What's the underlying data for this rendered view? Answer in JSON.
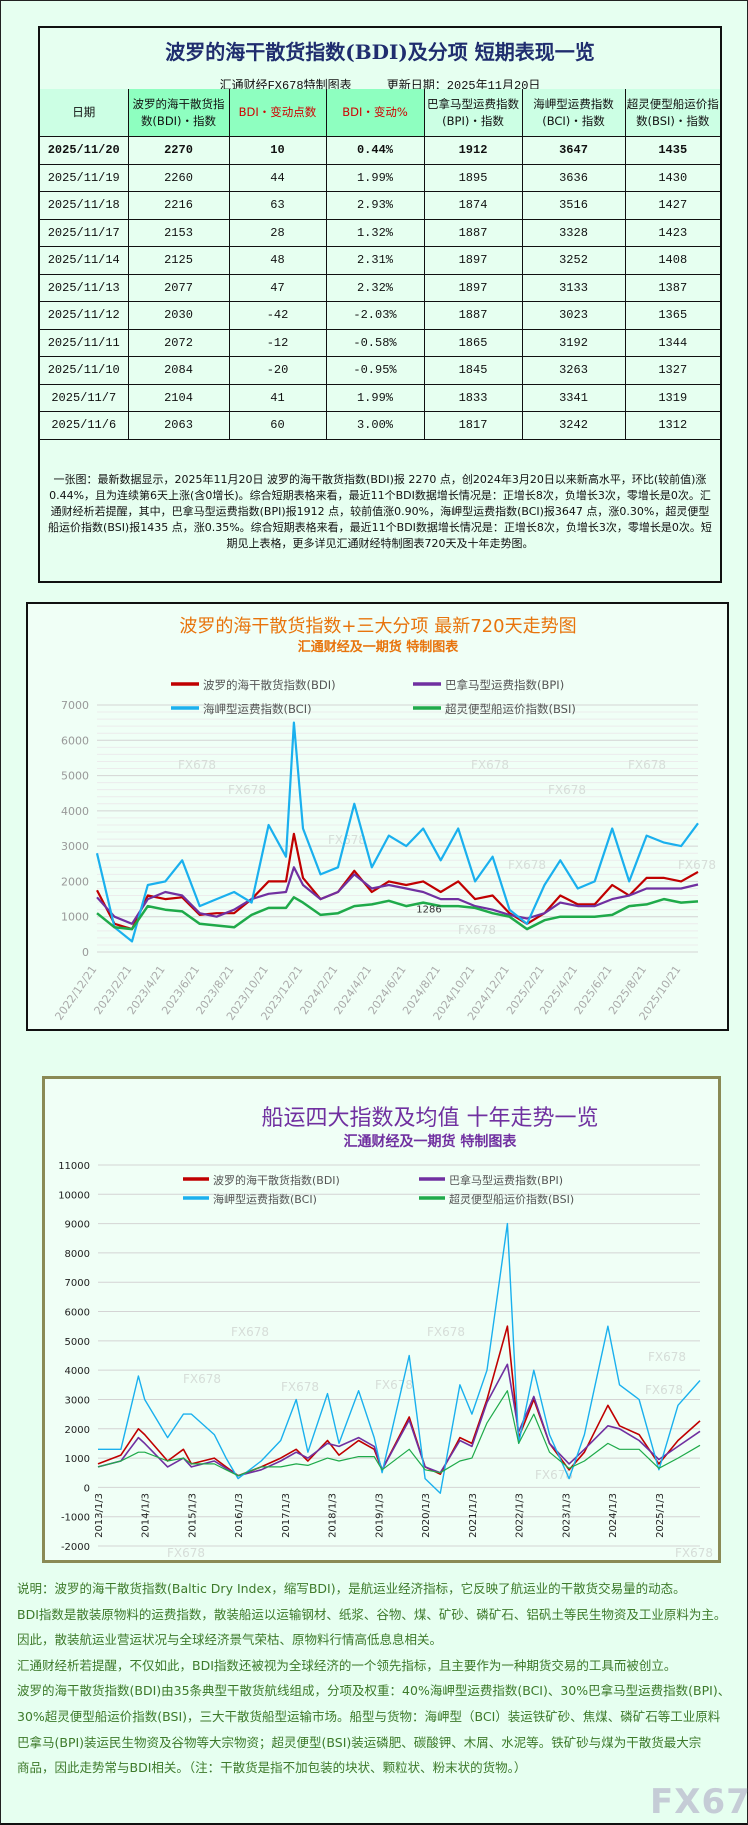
{
  "table_panel": {
    "title": "波罗的海干散货指数(BDI)及分项 短期表现一览",
    "source": "汇通财经FX678特制图表",
    "update_label": "更新日期：2025年11月20日",
    "headers": [
      "日期",
      "波罗的海干散货指数(BDI)・指数",
      "BDI・变动点数",
      "BDI・变动%",
      "巴拿马型运费指数(BPI)・指数",
      "海岬型运费指数(BCI)・指数",
      "超灵便型船运价指数(BSI)・指数"
    ],
    "rows": [
      [
        "2025/11/20",
        "2270",
        "10",
        "0.44%",
        "1912",
        "3647",
        "1435"
      ],
      [
        "2025/11/19",
        "2260",
        "44",
        "1.99%",
        "1895",
        "3636",
        "1430"
      ],
      [
        "2025/11/18",
        "2216",
        "63",
        "2.93%",
        "1874",
        "3516",
        "1427"
      ],
      [
        "2025/11/17",
        "2153",
        "28",
        "1.32%",
        "1887",
        "3328",
        "1423"
      ],
      [
        "2025/11/14",
        "2125",
        "48",
        "2.31%",
        "1897",
        "3252",
        "1408"
      ],
      [
        "2025/11/13",
        "2077",
        "47",
        "2.32%",
        "1897",
        "3133",
        "1387"
      ],
      [
        "2025/11/12",
        "2030",
        "-42",
        "-2.03%",
        "1887",
        "3023",
        "1365"
      ],
      [
        "2025/11/11",
        "2072",
        "-12",
        "-0.58%",
        "1865",
        "3192",
        "1344"
      ],
      [
        "2025/11/10",
        "2084",
        "-20",
        "-0.95%",
        "1845",
        "3263",
        "1327"
      ],
      [
        "2025/11/7",
        "2104",
        "41",
        "1.99%",
        "1833",
        "3341",
        "1319"
      ],
      [
        "2025/11/6",
        "2063",
        "60",
        "3.00%",
        "1817",
        "3242",
        "1312"
      ]
    ],
    "summary": "一张图：最新数据显示，2025年11月20日 波罗的海干散货指数(BDI)报 2270 点，创2024年3月20日以来新高水平，环比(较前值)涨0.44%，且为连续第6天上涨(含0增长)。综合短期表格来看，最近11个BDI数据增长情况是：正增长8次，负增长3次，零增长是0次。汇通财经析若提醒，其中，巴拿马型运费指数(BPI)报1912 点，较前值涨0.90%，海岬型运费指数(BCI)报3647 点，涨0.30%，超灵便型船运价指数(BSI)报1435 点，涨0.35%。综合短期表格来看，最近11个BDI数据增长情况是：正增长8次，负增长3次，零增长是0次。短期见上表格，更多详见汇通财经特制图表720天及十年走势图。"
  },
  "colors": {
    "bdi": "#c00000",
    "bpi": "#7030a0",
    "bci": "#1ab0ee",
    "bsi": "#1faa4a",
    "title1": "#e8740c",
    "title2": "#7030a0",
    "red_header": "#d00000"
  },
  "watermark": "FX678",
  "chart_data": [
    {
      "type": "line",
      "title": "波罗的海干散货指数+三大分项  最新720天走势图",
      "subtitle": "汇通财经及一期货  特制图表",
      "ylim": [
        0,
        7000
      ],
      "y_ticks": [
        "0",
        "1000",
        "2000",
        "3000",
        "4000",
        "5000",
        "6000",
        "7000"
      ],
      "x_ticks": [
        "2022/12/21",
        "2023/2/21",
        "2023/4/21",
        "2023/6/21",
        "2023/8/21",
        "2023/10/21",
        "2023/12/21",
        "2024/2/21",
        "2024/4/21",
        "2024/6/21",
        "2024/8/21",
        "2024/10/21",
        "2024/12/21",
        "2025/2/21",
        "2025/4/21",
        "2025/6/21",
        "2025/8/21",
        "2025/10/21"
      ],
      "grid": true,
      "legend": "top",
      "annotation": "1286",
      "x": [
        "2022/12/21",
        "2023/1/21",
        "2023/2/21",
        "2023/3/21",
        "2023/4/21",
        "2023/5/21",
        "2023/6/21",
        "2023/7/21",
        "2023/8/21",
        "2023/9/21",
        "2023/10/21",
        "2023/11/21",
        "2023/12/5",
        "2023/12/21",
        "2024/1/21",
        "2024/2/21",
        "2024/3/21",
        "2024/4/21",
        "2024/5/21",
        "2024/6/21",
        "2024/7/21",
        "2024/8/21",
        "2024/9/21",
        "2024/10/21",
        "2024/11/21",
        "2024/12/21",
        "2025/1/21",
        "2025/2/21",
        "2025/3/21",
        "2025/4/21",
        "2025/5/21",
        "2025/6/21",
        "2025/7/21",
        "2025/8/21",
        "2025/9/21",
        "2025/10/21",
        "2025/11/20"
      ],
      "series": [
        {
          "name": "波罗的海干散货指数(BDI)",
          "color": "#c00000",
          "values": [
            1750,
            800,
            650,
            1600,
            1500,
            1550,
            1050,
            1100,
            1100,
            1500,
            2000,
            2000,
            3350,
            2100,
            1500,
            1700,
            2300,
            1700,
            2000,
            1900,
            2000,
            1700,
            2000,
            1500,
            1600,
            1100,
            800,
            1100,
            1600,
            1350,
            1350,
            1900,
            1600,
            2100,
            2100,
            2000,
            2270
          ]
        },
        {
          "name": "巴拿马型运费指数(BPI)",
          "color": "#7030a0",
          "values": [
            1550,
            1000,
            800,
            1500,
            1700,
            1600,
            1100,
            1000,
            1200,
            1500,
            1650,
            1700,
            2400,
            1900,
            1500,
            1700,
            2200,
            1800,
            1900,
            1800,
            1700,
            1500,
            1500,
            1300,
            1200,
            1050,
            950,
            1100,
            1400,
            1300,
            1300,
            1500,
            1600,
            1800,
            1800,
            1800,
            1912
          ]
        },
        {
          "name": "海岬型运费指数(BCI)",
          "color": "#1ab0ee",
          "values": [
            2800,
            700,
            300,
            1900,
            2000,
            2600,
            1300,
            1500,
            1700,
            1400,
            3600,
            2700,
            6500,
            3500,
            2200,
            2400,
            4200,
            2400,
            3300,
            3000,
            3500,
            2600,
            3500,
            2000,
            2700,
            1200,
            800,
            1900,
            2600,
            1800,
            2000,
            3500,
            2000,
            3300,
            3100,
            3000,
            3647
          ]
        },
        {
          "name": "超灵便型船运价指数(BSI)",
          "color": "#1faa4a",
          "values": [
            1100,
            700,
            650,
            1300,
            1200,
            1150,
            800,
            750,
            700,
            1050,
            1250,
            1250,
            1550,
            1400,
            1050,
            1100,
            1300,
            1350,
            1450,
            1300,
            1400,
            1300,
            1300,
            1250,
            1100,
            1000,
            650,
            900,
            1000,
            1000,
            1000,
            1050,
            1300,
            1350,
            1500,
            1400,
            1435
          ]
        }
      ]
    },
    {
      "type": "line",
      "title": "船运四大指数及均值 十年走势一览",
      "subtitle": "汇通财经及一期货 特制图表",
      "ylim": [
        -2000,
        11000
      ],
      "y_ticks": [
        "-2000",
        "-1000",
        "0",
        "1000",
        "2000",
        "3000",
        "4000",
        "5000",
        "6000",
        "7000",
        "8000",
        "9000",
        "10000",
        "11000"
      ],
      "x_ticks": [
        "2013/1/3",
        "2014/1/3",
        "2015/1/3",
        "2016/1/3",
        "2017/1/3",
        "2018/1/3",
        "2019/1/3",
        "2020/1/3",
        "2021/1/3",
        "2022/1/3",
        "2023/1/3",
        "2024/1/3",
        "2025/1/3"
      ],
      "grid": true,
      "legend": "top",
      "x": [
        "2013/1/3",
        "2013/7/1",
        "2013/11/15",
        "2014/1/3",
        "2014/7/1",
        "2014/11/1",
        "2015/1/3",
        "2015/7/1",
        "2015/10/1",
        "2016/1/3",
        "2016/7/1",
        "2016/12/1",
        "2017/4/1",
        "2017/7/1",
        "2017/12/1",
        "2018/3/1",
        "2018/8/1",
        "2018/12/1",
        "2019/2/1",
        "2019/9/1",
        "2020/1/3",
        "2020/5/1",
        "2020/10/1",
        "2021/1/3",
        "2021/5/1",
        "2021/10/7",
        "2022/1/3",
        "2022/5/1",
        "2022/9/1",
        "2023/2/1",
        "2023/6/1",
        "2023/12/1",
        "2024/3/1",
        "2024/8/1",
        "2025/1/3",
        "2025/6/1",
        "2025/11/20"
      ],
      "series": [
        {
          "name": "波罗的海干散货指数(BDI)",
          "color": "#c00000",
          "values": [
            800,
            1100,
            2000,
            1800,
            900,
            1300,
            800,
            1000,
            700,
            400,
            700,
            1000,
            1300,
            900,
            1600,
            1100,
            1600,
            1300,
            600,
            2400,
            700,
            450,
            1700,
            1500,
            3000,
            5500,
            1700,
            3000,
            1500,
            600,
            1200,
            2800,
            2100,
            1800,
            800,
            1600,
            2270
          ]
        },
        {
          "name": "巴拿马型运费指数(BPI)",
          "color": "#7030a0",
          "values": [
            700,
            900,
            1700,
            1500,
            700,
            1000,
            700,
            900,
            650,
            400,
            600,
            900,
            1200,
            1000,
            1500,
            1400,
            1700,
            1400,
            600,
            2300,
            700,
            500,
            1600,
            1400,
            2900,
            4200,
            1900,
            3100,
            1500,
            800,
            1300,
            2100,
            2000,
            1600,
            950,
            1400,
            1912
          ]
        },
        {
          "name": "海岬型运费指数(BCI)",
          "color": "#1ab0ee",
          "values": [
            1300,
            1300,
            3800,
            3000,
            1700,
            2500,
            2500,
            1800,
            1000,
            300,
            900,
            1600,
            3000,
            1200,
            3200,
            1500,
            3300,
            1700,
            500,
            4500,
            300,
            -200,
            3500,
            2500,
            4000,
            9000,
            1500,
            4000,
            1800,
            300,
            1800,
            5500,
            3500,
            3000,
            600,
            2800,
            3647
          ]
        },
        {
          "name": "超灵便型船运价指数(BSI)",
          "color": "#1faa4a",
          "values": [
            700,
            900,
            1200,
            1200,
            900,
            1000,
            800,
            800,
            600,
            400,
            700,
            700,
            800,
            750,
            1000,
            900,
            1050,
            1050,
            600,
            1300,
            600,
            500,
            900,
            1000,
            2200,
            3300,
            1500,
            2500,
            1200,
            650,
            900,
            1500,
            1300,
            1300,
            650,
            1000,
            1435
          ]
        }
      ]
    }
  ],
  "description": [
    "说明：波罗的海干散货指数(Baltic Dry Index，缩写BDI)，是航运业经济指标，它反映了航运业的干散货交易量的动态。",
    "BDI指数是散装原物料的运费指数，散装船运以运输钢材、纸浆、谷物、煤、矿砂、磷矿石、铝矾土等民生物资及工业原料为主。",
    "因此，散装航运业营运状况与全球经济景气荣枯、原物料行情高低息息相关。",
    "汇通财经析若提醒，不仅如此，BDI指数还被视为全球经济的一个领先指标，且主要作为一种期货交易的工具而被创立。",
    "波罗的海干散货指数(BDI)由35条典型干散货航线组成，分项及权重：40%海岬型运费指数(BCI)、30%巴拿马型运费指数(BPI)、",
    "30%超灵便型船运价指数(BSI)，三大干散货船型运输市场。船型与货物：海岬型（BCI）装运铁矿砂、焦煤、磷矿石等工业原料",
    "巴拿马(BPI)装运民生物资及谷物等大宗物资；超灵便型(BSI)装运磷肥、碳酸钾、木屑、水泥等。铁矿砂与煤为干散货最大宗",
    "商品，因此走势常与BDI相关。（注：干散货是指不加包装的块状、颗粒状、粉末状的货物。）"
  ]
}
